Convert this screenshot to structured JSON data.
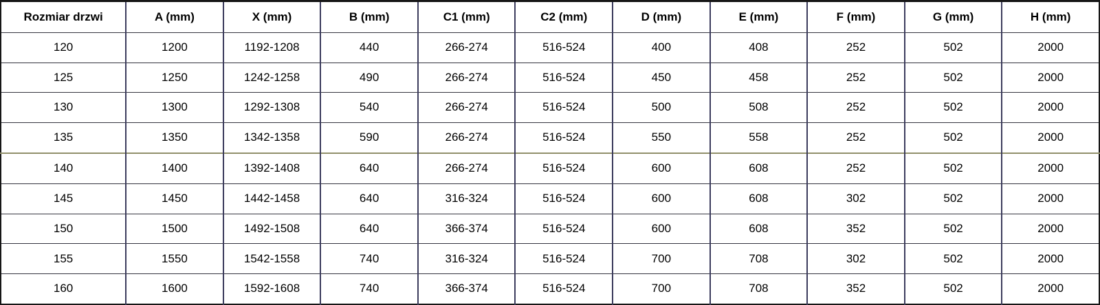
{
  "chart_data": {
    "type": "table",
    "title": "",
    "headers": [
      "Rozmiar drzwi",
      "A (mm)",
      "X (mm)",
      "B (mm)",
      "C1 (mm)",
      "C2 (mm)",
      "D (mm)",
      "E (mm)",
      "F (mm)",
      "G (mm)",
      "H (mm)"
    ],
    "rows": [
      [
        "120",
        "1200",
        "1192-1208",
        "440",
        "266-274",
        "516-524",
        "400",
        "408",
        "252",
        "502",
        "2000"
      ],
      [
        "125",
        "1250",
        "1242-1258",
        "490",
        "266-274",
        "516-524",
        "450",
        "458",
        "252",
        "502",
        "2000"
      ],
      [
        "130",
        "1300",
        "1292-1308",
        "540",
        "266-274",
        "516-524",
        "500",
        "508",
        "252",
        "502",
        "2000"
      ],
      [
        "135",
        "1350",
        "1342-1358",
        "590",
        "266-274",
        "516-524",
        "550",
        "558",
        "252",
        "502",
        "2000"
      ],
      [
        "140",
        "1400",
        "1392-1408",
        "640",
        "266-274",
        "516-524",
        "600",
        "608",
        "252",
        "502",
        "2000"
      ],
      [
        "145",
        "1450",
        "1442-1458",
        "640",
        "316-324",
        "516-524",
        "600",
        "608",
        "302",
        "502",
        "2000"
      ],
      [
        "150",
        "1500",
        "1492-1508",
        "640",
        "366-374",
        "516-524",
        "600",
        "608",
        "352",
        "502",
        "2000"
      ],
      [
        "155",
        "1550",
        "1542-1558",
        "740",
        "316-324",
        "516-524",
        "700",
        "708",
        "302",
        "502",
        "2000"
      ],
      [
        "160",
        "1600",
        "1592-1608",
        "740",
        "366-374",
        "516-524",
        "700",
        "708",
        "352",
        "502",
        "2000"
      ]
    ],
    "divider": {
      "row_index": 4,
      "row_label": "140",
      "color": "#918f6a"
    }
  },
  "colors": {
    "background": "#ffffff",
    "text": "#000000",
    "outer_border": "#161616",
    "grid_horizontal": "#33333d",
    "grid_vertical": "#3b3b5c",
    "divider_olive": "#918f6a"
  }
}
